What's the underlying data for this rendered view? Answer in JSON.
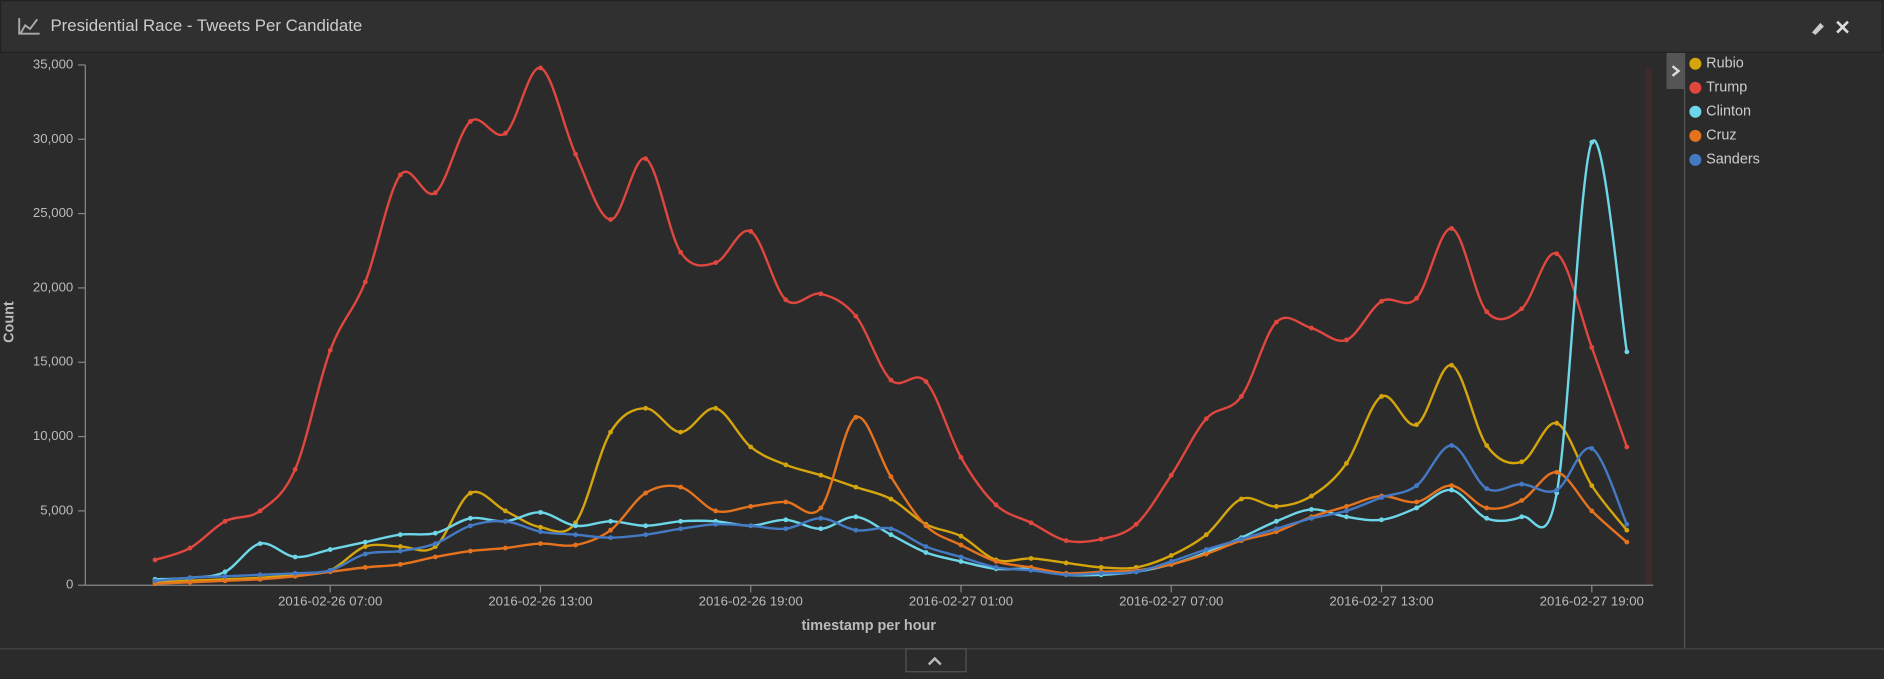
{
  "header": {
    "title": "Presidential Race - Tweets Per Candidate"
  },
  "chart_data": {
    "type": "line",
    "x_label": "timestamp per hour",
    "y_label": "Count",
    "x": [
      "2016-02-26 02:00",
      "2016-02-26 03:00",
      "2016-02-26 04:00",
      "2016-02-26 05:00",
      "2016-02-26 06:00",
      "2016-02-26 07:00",
      "2016-02-26 08:00",
      "2016-02-26 09:00",
      "2016-02-26 10:00",
      "2016-02-26 11:00",
      "2016-02-26 12:00",
      "2016-02-26 13:00",
      "2016-02-26 14:00",
      "2016-02-26 15:00",
      "2016-02-26 16:00",
      "2016-02-26 17:00",
      "2016-02-26 18:00",
      "2016-02-26 19:00",
      "2016-02-26 20:00",
      "2016-02-26 21:00",
      "2016-02-26 22:00",
      "2016-02-26 23:00",
      "2016-02-27 00:00",
      "2016-02-27 01:00",
      "2016-02-27 02:00",
      "2016-02-27 03:00",
      "2016-02-27 04:00",
      "2016-02-27 05:00",
      "2016-02-27 06:00",
      "2016-02-27 07:00",
      "2016-02-27 08:00",
      "2016-02-27 09:00",
      "2016-02-27 10:00",
      "2016-02-27 11:00",
      "2016-02-27 12:00",
      "2016-02-27 13:00",
      "2016-02-27 14:00",
      "2016-02-27 15:00",
      "2016-02-27 16:00",
      "2016-02-27 17:00",
      "2016-02-27 18:00",
      "2016-02-27 19:00",
      "2016-02-27 20:00"
    ],
    "xticks": [
      "2016-02-26 07:00",
      "2016-02-26 13:00",
      "2016-02-26 19:00",
      "2016-02-27 01:00",
      "2016-02-27 07:00",
      "2016-02-27 13:00",
      "2016-02-27 19:00"
    ],
    "ylim": [
      0,
      35000
    ],
    "yticks": [
      0,
      {
        "value": 5000,
        "label": "5,000"
      },
      {
        "value": 10000,
        "label": "10,000"
      },
      {
        "value": 15000,
        "label": "15,000"
      },
      {
        "value": 20000,
        "label": "20,000"
      },
      {
        "value": 25000,
        "label": "25,000"
      },
      {
        "value": 30000,
        "label": "30,000"
      },
      {
        "value": 35000,
        "label": "35,000"
      }
    ],
    "legend": "right",
    "series": [
      {
        "name": "Rubio",
        "color": "#d4a50c",
        "values": [
          200,
          300,
          400,
          500,
          700,
          1000,
          2600,
          2600,
          2600,
          6200,
          5000,
          3900,
          4200,
          10300,
          11900,
          10300,
          11900,
          9300,
          8100,
          7400,
          6600,
          5800,
          4100,
          3300,
          1700,
          1800,
          1500,
          1200,
          1200,
          2000,
          3400,
          5800,
          5300,
          6000,
          8200,
          12700,
          10800,
          14800,
          9400,
          8300,
          10900,
          6700,
          3700
        ]
      },
      {
        "name": "Trump",
        "color": "#e0473e",
        "values": [
          1700,
          2500,
          4300,
          5000,
          7800,
          15800,
          20400,
          27600,
          26400,
          31200,
          30400,
          34800,
          29000,
          24600,
          28700,
          22400,
          21700,
          23800,
          19200,
          19600,
          18100,
          13800,
          13700,
          8600,
          5400,
          4200,
          3000,
          3100,
          4100,
          7400,
          11200,
          12700,
          17700,
          17300,
          16500,
          19100,
          19300,
          24000,
          18400,
          18600,
          22300,
          16000,
          9300
        ]
      },
      {
        "name": "Clinton",
        "color": "#6dd6e8",
        "values": [
          400,
          500,
          900,
          2800,
          1900,
          2400,
          2900,
          3400,
          3500,
          4500,
          4300,
          4900,
          4000,
          4300,
          4000,
          4300,
          4300,
          4000,
          4400,
          3800,
          4600,
          3400,
          2200,
          1600,
          1100,
          1100,
          700,
          700,
          900,
          1400,
          2200,
          3200,
          4300,
          5100,
          4600,
          4400,
          5200,
          6400,
          4500,
          4600,
          6200,
          29800,
          15700
        ]
      },
      {
        "name": "Cruz",
        "color": "#e5731e",
        "values": [
          100,
          200,
          300,
          400,
          600,
          900,
          1200,
          1400,
          1900,
          2300,
          2500,
          2800,
          2700,
          3700,
          6200,
          6600,
          5000,
          5300,
          5600,
          5200,
          11300,
          7300,
          4000,
          2700,
          1600,
          1200,
          800,
          900,
          1000,
          1400,
          2100,
          3000,
          3600,
          4600,
          5300,
          6000,
          5600,
          6700,
          5200,
          5700,
          7600,
          5000,
          2900
        ]
      },
      {
        "name": "Sanders",
        "color": "#447ac4",
        "values": [
          300,
          500,
          600,
          700,
          800,
          1000,
          2100,
          2300,
          2800,
          4000,
          4300,
          3600,
          3400,
          3200,
          3400,
          3800,
          4100,
          4000,
          3800,
          4500,
          3700,
          3800,
          2600,
          1900,
          1200,
          1000,
          700,
          800,
          900,
          1600,
          2400,
          3100,
          3800,
          4500,
          5000,
          5900,
          6700,
          9400,
          6500,
          6800,
          6400,
          9200,
          4100
        ]
      }
    ]
  }
}
